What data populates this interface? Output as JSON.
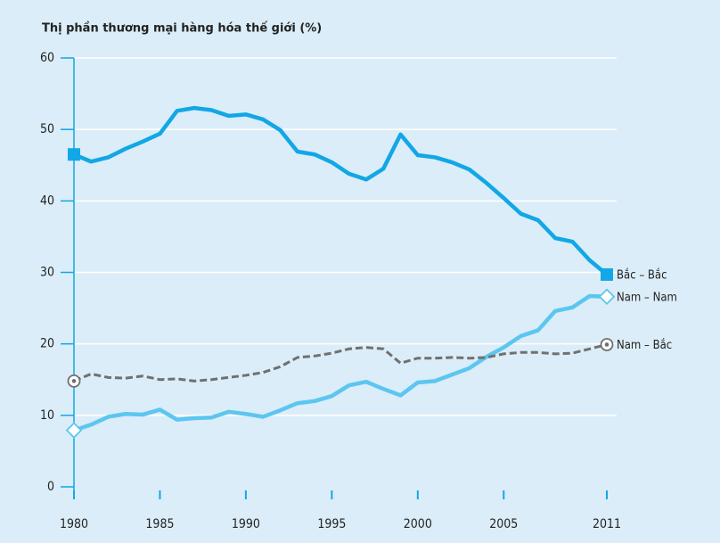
{
  "chart_data": {
    "type": "line",
    "title": "Thị phần thương mại hàng hóa thế giới (%)",
    "x": [
      1980,
      1981,
      1982,
      1983,
      1984,
      1985,
      1986,
      1987,
      1988,
      1989,
      1990,
      1991,
      1992,
      1993,
      1994,
      1995,
      1996,
      1997,
      1998,
      1999,
      2000,
      2001,
      2002,
      2003,
      2004,
      2005,
      2006,
      2007,
      2008,
      2009,
      2010,
      2011
    ],
    "series": [
      {
        "name": "Bắc – Bắc",
        "color": "#12a7e6",
        "dash": false,
        "marker": "square",
        "values": [
          46.5,
          45.5,
          46.1,
          47.3,
          48.3,
          49.4,
          52.6,
          53.0,
          52.7,
          51.9,
          52.1,
          51.4,
          49.9,
          46.9,
          46.5,
          45.4,
          43.8,
          43.0,
          44.5,
          49.3,
          46.4,
          46.1,
          45.4,
          44.4,
          42.5,
          40.4,
          38.2,
          37.3,
          34.8,
          34.3,
          31.7,
          29.7
        ]
      },
      {
        "name": "Nam – Nam",
        "color": "#5cc6f0",
        "dash": false,
        "marker": "diamond",
        "values": [
          7.9,
          8.7,
          9.8,
          10.2,
          10.1,
          10.8,
          9.4,
          9.6,
          9.7,
          10.5,
          10.2,
          9.8,
          10.7,
          11.7,
          12.0,
          12.7,
          14.2,
          14.7,
          13.7,
          12.8,
          14.6,
          14.8,
          15.7,
          16.6,
          18.2,
          19.5,
          21.1,
          21.9,
          24.6,
          25.1,
          26.7,
          26.6
        ]
      },
      {
        "name": "Nam – Bắc",
        "color": "#707070",
        "dash": true,
        "marker": "circle-dot",
        "values": [
          14.8,
          15.8,
          15.3,
          15.2,
          15.5,
          15.0,
          15.1,
          14.8,
          15.0,
          15.3,
          15.6,
          16.0,
          16.8,
          18.1,
          18.3,
          18.7,
          19.3,
          19.5,
          19.3,
          17.3,
          18.0,
          18.0,
          18.1,
          18.0,
          18.1,
          18.6,
          18.8,
          18.8,
          18.6,
          18.7,
          19.3,
          19.9
        ]
      }
    ],
    "xlim": [
      1980,
      2011
    ],
    "xticks": [
      1980,
      1985,
      1990,
      1995,
      2000,
      2005,
      2011
    ],
    "ylim": [
      0,
      60
    ],
    "yticks": [
      0,
      10,
      20,
      30,
      40,
      50,
      60
    ],
    "grid": true
  }
}
